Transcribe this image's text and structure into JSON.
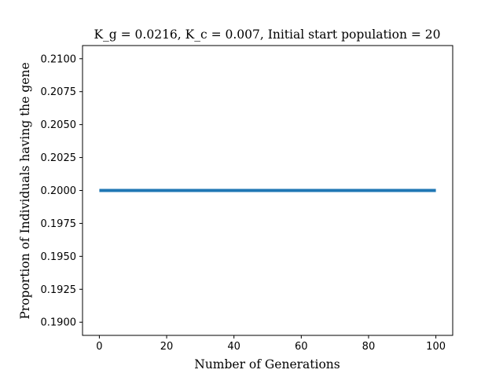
{
  "chart_data": {
    "type": "line",
    "title": "K_g = 0.0216, K_c = 0.007, Initial start population = 20",
    "xlabel": "Number of Generations",
    "ylabel": "Proportion of Individuals having the gene",
    "xlim": [
      -5,
      105
    ],
    "ylim": [
      0.189,
      0.211
    ],
    "x_ticks": [
      0,
      20,
      40,
      60,
      80,
      100
    ],
    "x_tick_labels": [
      "0",
      "20",
      "40",
      "60",
      "80",
      "100"
    ],
    "y_ticks": [
      0.19,
      0.1925,
      0.195,
      0.1975,
      0.2,
      0.2025,
      0.205,
      0.2075,
      0.21
    ],
    "y_tick_labels": [
      "0.1900",
      "0.1925",
      "0.1950",
      "0.1975",
      "0.2000",
      "0.2025",
      "0.2050",
      "0.2075",
      "0.2100"
    ],
    "grid": false,
    "series": [
      {
        "color": "#1f77b4",
        "x": [
          0,
          100
        ],
        "y": [
          0.2,
          0.2
        ]
      }
    ]
  }
}
